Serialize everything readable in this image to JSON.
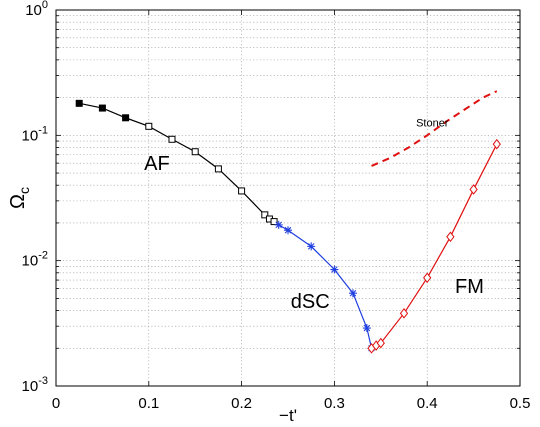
{
  "chart_data": {
    "type": "line",
    "xlabel": "−t'",
    "ylabel": "Ω",
    "ylabel_sub": "c",
    "xlim": [
      0,
      0.5
    ],
    "ylim": [
      0.001,
      1
    ],
    "yscale": "log",
    "grid": "dotted",
    "xticks": [
      0,
      0.1,
      0.2,
      0.3,
      0.4,
      0.5
    ],
    "xtick_labels": [
      "0",
      "0.1",
      "0.2",
      "0.3",
      "0.4",
      "0.5"
    ],
    "yticks": [
      0.001,
      0.01,
      0.1,
      1
    ],
    "ytick_labels": [
      {
        "base": "10",
        "exp": "-3"
      },
      {
        "base": "10",
        "exp": "-2"
      },
      {
        "base": "10",
        "exp": "-1"
      },
      {
        "base": "10",
        "exp": "0"
      }
    ],
    "series": [
      {
        "name": "AF",
        "color": "#000000",
        "line_style": "solid",
        "x": [
          0.025,
          0.05,
          0.075,
          0.1,
          0.125,
          0.15,
          0.175,
          0.2,
          0.225,
          0.23,
          0.235
        ],
        "y": [
          0.18,
          0.165,
          0.138,
          0.118,
          0.093,
          0.074,
          0.054,
          0.036,
          0.0232,
          0.0215,
          0.0205
        ],
        "markers": [
          "filled-square",
          "filled-square",
          "filled-square",
          "square",
          "square",
          "square",
          "square",
          "square",
          "square",
          "square",
          "square"
        ]
      },
      {
        "name": "dSC",
        "color": "#1f3fe0",
        "line_style": "solid",
        "marker": "asterisk",
        "x": [
          0.24,
          0.25,
          0.275,
          0.3,
          0.32,
          0.335,
          0.34
        ],
        "y": [
          0.0193,
          0.0175,
          0.013,
          0.0085,
          0.0055,
          0.0029,
          0.002
        ]
      },
      {
        "name": "FM",
        "color": "#e01010",
        "line_style": "solid",
        "marker": "diamond",
        "x": [
          0.34,
          0.345,
          0.35,
          0.375,
          0.4,
          0.425,
          0.45,
          0.475
        ],
        "y": [
          0.002,
          0.0021,
          0.0022,
          0.0038,
          0.0073,
          0.0155,
          0.037,
          0.085
        ]
      },
      {
        "name": "Stoner",
        "color": "#e01010",
        "line_style": "dashed",
        "marker": "none",
        "x": [
          0.34,
          0.36,
          0.38,
          0.4,
          0.42,
          0.44,
          0.46,
          0.475
        ],
        "y": [
          0.057,
          0.066,
          0.08,
          0.1,
          0.128,
          0.16,
          0.2,
          0.225
        ]
      }
    ],
    "annotations": [
      {
        "text": "AF",
        "x": 0.095,
        "y": 0.053,
        "size": "large"
      },
      {
        "text": "dSC",
        "x": 0.253,
        "y": 0.0042,
        "size": "large"
      },
      {
        "text": "FM",
        "x": 0.43,
        "y": 0.0055,
        "size": "large"
      },
      {
        "text": "Stoner",
        "x": 0.388,
        "y": 0.118,
        "size": "small"
      }
    ]
  }
}
